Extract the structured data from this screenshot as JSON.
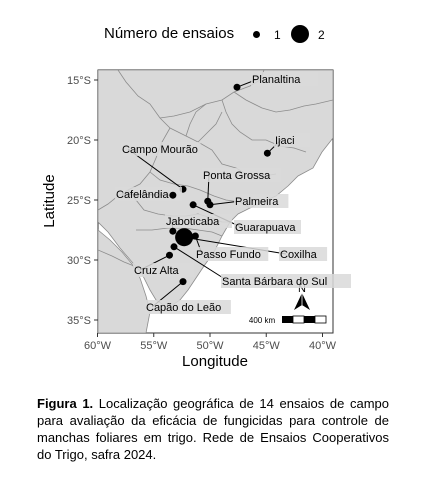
{
  "legend": {
    "title": "Número de ensaios",
    "items": [
      {
        "label": "1",
        "count": 1
      },
      {
        "label": "2",
        "count": 2
      }
    ]
  },
  "map": {
    "xlabel": "Longitude",
    "ylabel": "Latitude",
    "lon_ticks": [
      "60°W",
      "55°W",
      "50°W",
      "45°W",
      "40°W"
    ],
    "lat_ticks": [
      "15°S",
      "20°S",
      "25°S",
      "30°S",
      "35°S"
    ],
    "scale_bar": "400 km",
    "north": "N",
    "land_color": "#d9d9d9",
    "border_color": "#8c8c8c",
    "sites": [
      {
        "name": "Planaltina",
        "lon": -47.6,
        "lat": -15.6,
        "trials": 1
      },
      {
        "name": "Ijaci",
        "lon": -44.9,
        "lat": -21.1,
        "trials": 1
      },
      {
        "name": "Campo Mourão",
        "lon": -52.4,
        "lat": -24.1,
        "trials": 1
      },
      {
        "name": "Ponta Grossa",
        "lon": -50.2,
        "lat": -25.1,
        "trials": 1
      },
      {
        "name": "Cafelândia",
        "lon": -53.3,
        "lat": -24.6,
        "trials": 1
      },
      {
        "name": "Palmeira",
        "lon": -50.0,
        "lat": -25.4,
        "trials": 1
      },
      {
        "name": "Guarapuava",
        "lon": -51.5,
        "lat": -25.4,
        "trials": 1
      },
      {
        "name": "Jaboticaba",
        "lon": -53.3,
        "lat": -27.6,
        "trials": 1
      },
      {
        "name": "Coxilha",
        "lon": -52.3,
        "lat": -28.1,
        "trials": 2
      },
      {
        "name": "Passo Fundo",
        "lon": -51.3,
        "lat": -28.0,
        "trials": 1
      },
      {
        "name": "Santa Bárbara do Sul",
        "lon": -53.2,
        "lat": -28.9,
        "trials": 1
      },
      {
        "name": "Cruz Alta",
        "lon": -53.6,
        "lat": -29.6,
        "trials": 1
      },
      {
        "name": "Capão do Leão",
        "lon": -52.4,
        "lat": -31.8,
        "trials": 1
      }
    ]
  },
  "caption": {
    "label": "Figura 1.",
    "text": "Localização geográfica de 14 ensaios de campo para avaliação da eficácia de fungicidas para controle de manchas foliares em trigo. Rede de Ensaios Cooperativos do Trigo, safra 2024."
  }
}
